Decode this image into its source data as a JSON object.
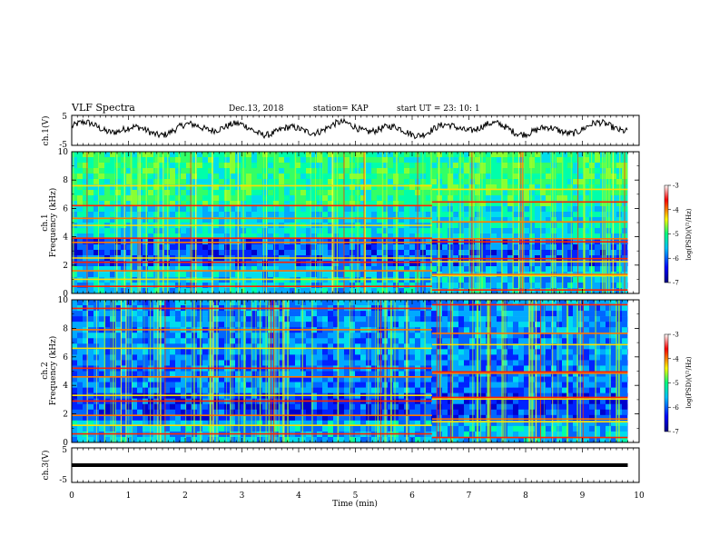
{
  "header": {
    "title": "VLF Spectra",
    "date": "Dec.13, 2018",
    "station": "station= KAP",
    "start": "start  UT  =  23: 10: 1"
  },
  "chart_data": {
    "type": "heatmap",
    "x_axis": {
      "label": "Time (min)",
      "range": [
        0,
        10
      ],
      "ticks": [
        "0",
        "1",
        "2",
        "3",
        "4",
        "5",
        "6",
        "7",
        "8",
        "9",
        "10"
      ],
      "data_end": 9.8
    },
    "ch1_waveform": {
      "type": "line",
      "ylabel": "ch.1(V)",
      "ylim": [
        -5,
        5
      ],
      "ticks": [
        "5",
        "-5"
      ],
      "baseline_v": 0.5,
      "amplitude_v": 2.5
    },
    "ch1_spectrogram": {
      "ylabel_top": "ch.1",
      "ylabel": "Frequency (kHz)",
      "ylim": [
        0,
        10
      ],
      "ticks": [
        "10",
        "8",
        "6",
        "4",
        "2",
        "0"
      ],
      "horizontal_lines_khz": [
        0.5,
        1.0,
        1.6,
        2.2,
        2.5,
        3.6,
        3.9,
        4.8,
        5.3,
        6.2,
        7.6
      ],
      "feature_shift_min": 6.35
    },
    "ch2_spectrogram": {
      "ylabel_top": "ch.2",
      "ylabel": "Frequency (kHz)",
      "ylim": [
        0,
        10
      ],
      "ticks": [
        "10",
        "8",
        "6",
        "4",
        "2",
        "0"
      ],
      "horizontal_lines_khz": [
        0.6,
        1.2,
        1.9,
        2.9,
        3.3,
        4.6,
        5.2,
        6.6,
        7.9,
        9.4
      ],
      "feature_shift_min": 6.35
    },
    "ch3_waveform": {
      "type": "line",
      "ylabel": "ch.3(V)",
      "ylim": [
        -5,
        5
      ],
      "ticks": [
        "5",
        "-5"
      ],
      "baseline_v": 0
    },
    "colorbar": {
      "label": "log(PSD)(V²/Hz)",
      "range": [
        -7,
        -3
      ],
      "ticks": [
        "-3",
        "-4",
        "-5",
        "-6",
        "-7"
      ]
    }
  }
}
